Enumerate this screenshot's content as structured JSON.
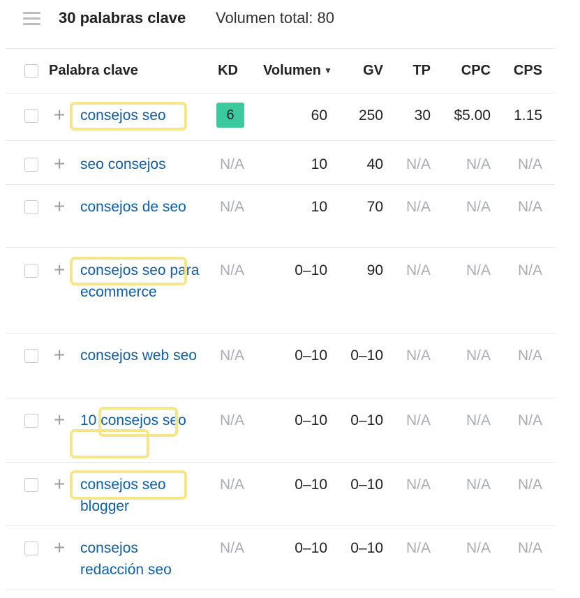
{
  "header": {
    "menu_icon": "hamburger-menu-icon",
    "title": "30 palabras clave",
    "total_volume": "Volumen total: 80"
  },
  "columns": {
    "keyword": "Palabra clave",
    "kd": "KD",
    "volume": "Volumen",
    "volume_sort_icon": "sort-desc-icon",
    "gv": "GV",
    "tp": "TP",
    "cpc": "CPC",
    "cps": "CPS"
  },
  "rows": [
    {
      "keyword": "consejos seo",
      "kd": "6",
      "volume": "60",
      "gv": "250",
      "tp": "30",
      "cpc": "$5.00",
      "cps": "1.15"
    },
    {
      "keyword": "seo consejos",
      "kd": "N/A",
      "volume": "10",
      "gv": "40",
      "tp": "N/A",
      "cpc": "N/A",
      "cps": "N/A"
    },
    {
      "keyword": "consejos de seo",
      "kd": "N/A",
      "volume": "10",
      "gv": "70",
      "tp": "N/A",
      "cpc": "N/A",
      "cps": "N/A"
    },
    {
      "keyword": "consejos seo para ecommerce",
      "kd": "N/A",
      "volume": "0–10",
      "gv": "90",
      "tp": "N/A",
      "cpc": "N/A",
      "cps": "N/A"
    },
    {
      "keyword": "consejos web seo",
      "kd": "N/A",
      "volume": "0–10",
      "gv": "0–10",
      "tp": "N/A",
      "cpc": "N/A",
      "cps": "N/A"
    },
    {
      "keyword": "10 consejos seo",
      "kd": "N/A",
      "volume": "0–10",
      "gv": "0–10",
      "tp": "N/A",
      "cpc": "N/A",
      "cps": "N/A"
    },
    {
      "keyword": "consejos seo blogger",
      "kd": "N/A",
      "volume": "0–10",
      "gv": "0–10",
      "tp": "N/A",
      "cpc": "N/A",
      "cps": "N/A"
    },
    {
      "keyword": "consejos redacción seo",
      "kd": "N/A",
      "volume": "0–10",
      "gv": "0–10",
      "tp": "N/A",
      "cpc": "N/A",
      "cps": "N/A"
    }
  ],
  "colors": {
    "link": "#0e5fa8",
    "kd_badge": "#3dc99e",
    "highlight": "#f6e68a",
    "muted": "#a9adb3"
  }
}
